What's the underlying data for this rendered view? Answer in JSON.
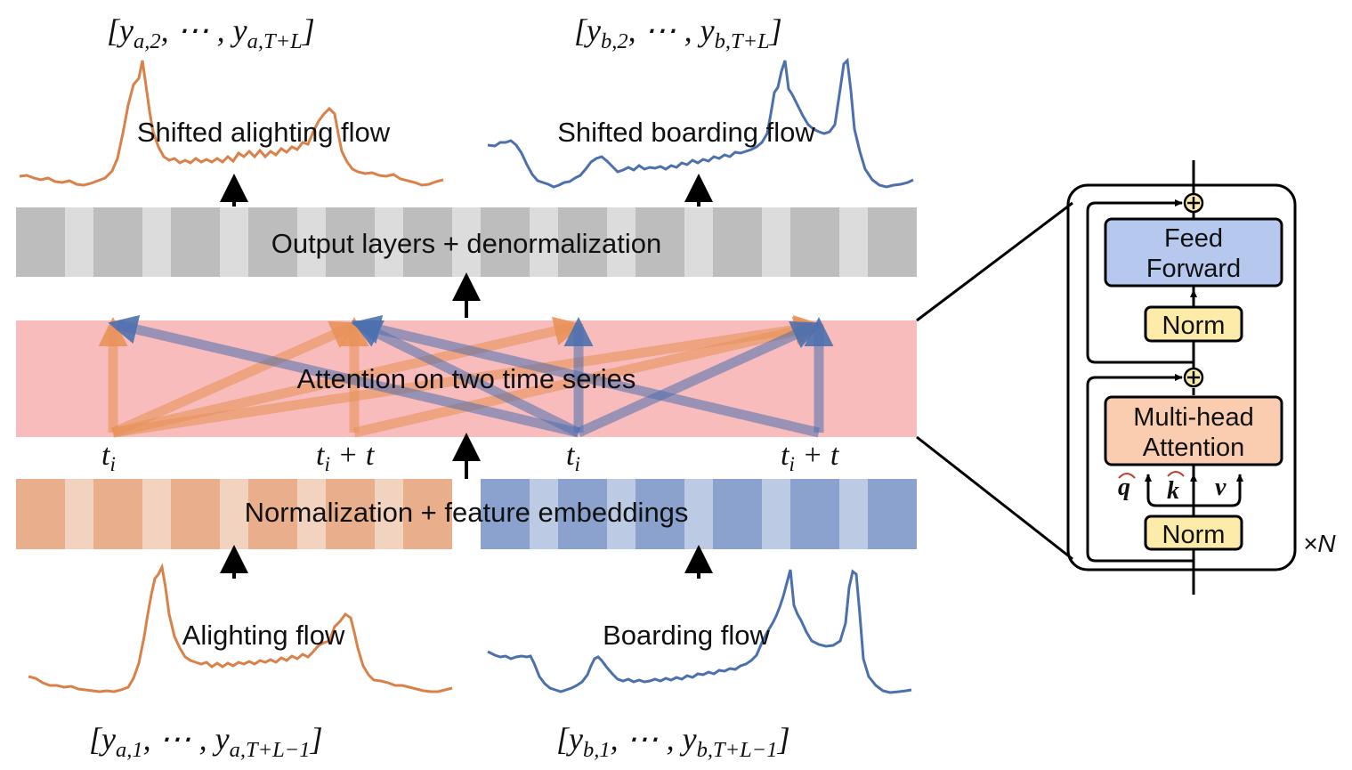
{
  "colors": {
    "orange": "#D98149",
    "blue": "#4C70AE",
    "grey_dark": "#BDBDBD",
    "grey_light": "#DCDCDC",
    "attention_bg": "#F8BCBC",
    "orange_dark": "#E9AE8C",
    "orange_light": "#F2D3C0",
    "blue_dark": "#8AA2CD",
    "blue_light": "#BCCBE3",
    "ff_fill": "#B7C8EE",
    "norm_fill": "#FDEBA9",
    "mha_fill": "#FBCDB0"
  },
  "labels": {
    "output_top_a": "[y_{a,2}, ⋯ , y_{a,T+L}]",
    "output_top_b": "[y_{b,2}, ⋯ , y_{b,T+L}]",
    "shifted_alighting": "Shifted alighting flow",
    "shifted_boarding": "Shifted boarding flow",
    "output_layers": "Output layers + denormalization",
    "attention": "Attention on two time series",
    "t_a1": "t_i",
    "t_a2": "t_i + t",
    "t_b1": "t_i",
    "t_b2": "t_i + t",
    "normalization": "Normalization + feature embeddings",
    "alighting": "Alighting flow",
    "boarding": "Boarding flow",
    "input_bottom_a": "[y_{a,1}, ⋯ , y_{a,T+L−1}]",
    "input_bottom_b": "[y_{b,1}, ⋯ , y_{b,T+L−1}]"
  },
  "block": {
    "feed_forward_line1": "Feed",
    "feed_forward_line2": "Forward",
    "norm_top": "Norm",
    "mha_line1": "Multi-head",
    "mha_line2": "Attention",
    "q": "q",
    "k": "k",
    "v": "v",
    "norm_bottom": "Norm",
    "times_n": "×N"
  }
}
